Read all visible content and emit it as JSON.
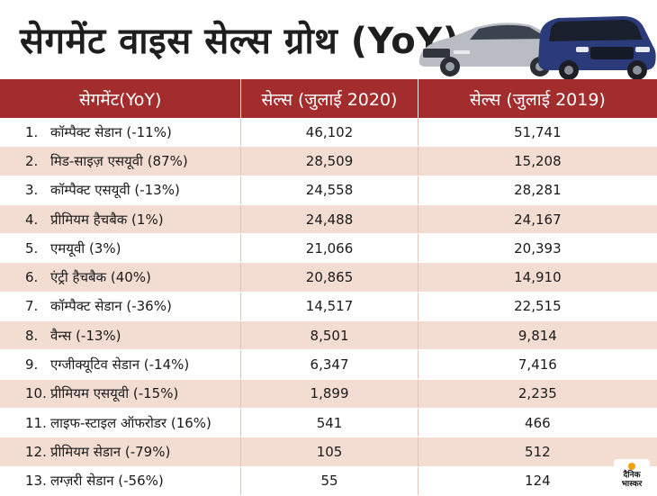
{
  "title": "सेगमेंट वाइस सेल्स ग्रोथ (YoY)",
  "columns": [
    "सेगमेंट(YoY)",
    "सेल्स (जुलाई 2020)",
    "सेल्स (जुलाई 2019)"
  ],
  "rows": [
    {
      "n": "1.",
      "segment": "कॉम्पैक्ट सेडान (-11%)",
      "s2020": "46,102",
      "s2019": "51,741"
    },
    {
      "n": "2.",
      "segment": "मिड-साइज़ एसयूवी (87%)",
      "s2020": "28,509",
      "s2019": "15,208"
    },
    {
      "n": "3.",
      "segment": "कॉम्पैक्ट एसयूवी (-13%)",
      "s2020": "24,558",
      "s2019": "28,281"
    },
    {
      "n": "4.",
      "segment": "प्रीमियम हैचबैक (1%)",
      "s2020": "24,488",
      "s2019": "24,167"
    },
    {
      "n": "5.",
      "segment": "एमयूवी (3%)",
      "s2020": "21,066",
      "s2019": "20,393"
    },
    {
      "n": "6.",
      "segment": "एंट्री हैचबैक (40%)",
      "s2020": "20,865",
      "s2019": "14,910"
    },
    {
      "n": "7.",
      "segment": "कॉम्पैक्ट सेडान (-36%)",
      "s2020": "14,517",
      "s2019": "22,515"
    },
    {
      "n": "8.",
      "segment": "वैन्स (-13%)",
      "s2020": "8,501",
      "s2019": "9,814"
    },
    {
      "n": "9.",
      "segment": "एग्जीक्यूटिव सेडान (-14%)",
      "s2020": "6,347",
      "s2019": "7,416"
    },
    {
      "n": "10.",
      "segment": "प्रीमियम एसयूवी (-15%)",
      "s2020": "1,899",
      "s2019": "2,235"
    },
    {
      "n": "11.",
      "segment": "लाइफ-स्टाइल ऑफरोडर (16%)",
      "s2020": "541",
      "s2019": "466"
    },
    {
      "n": "12.",
      "segment": "प्रीमियम सेडान (-79%)",
      "s2020": "105",
      "s2019": "512"
    },
    {
      "n": "13.",
      "segment": "लग्ज़री सेडान (-56%)",
      "s2020": "55",
      "s2019": "124"
    }
  ],
  "logo": {
    "line1": "दैनिक",
    "line2": "भास्कर"
  },
  "colors": {
    "header": "#a32d2d",
    "band": "#f3ddd3",
    "background": "#f4e4dc"
  }
}
